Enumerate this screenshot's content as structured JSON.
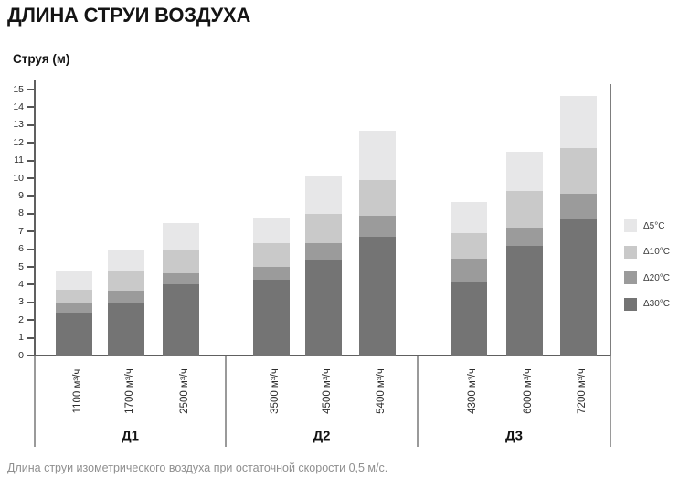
{
  "page": {
    "title": "ДЛИНА СТРУИ ВОЗДУХА",
    "y_axis_title": "Струя (м)",
    "caption": "Длина струи изометрического воздуха при остаточной скорости 0,5 м/с."
  },
  "chart_data": {
    "type": "bar",
    "stacked": true,
    "values_are": "cumulative jet length (m) reached for each ΔT; segments drawn as differences",
    "title": "ДЛИНА СТРУИ ВОЗДУХА",
    "ylabel": "Струя (м)",
    "xlabel": "",
    "ylim": [
      0,
      15
    ],
    "ytick_step": 1,
    "grid": false,
    "legend_position": "right",
    "series": [
      {
        "name": "Δ5°C",
        "color": "#e7e7e8"
      },
      {
        "name": "Δ10°C",
        "color": "#c9c9c9"
      },
      {
        "name": "Δ20°C",
        "color": "#9b9b9b"
      },
      {
        "name": "Δ30°C",
        "color": "#747474"
      }
    ],
    "groups": [
      {
        "label": "Д1",
        "bars": [
          {
            "category": "1100 м³/ч",
            "jet_length_m": {
              "Δ30°C": 2.4,
              "Δ20°C": 3.0,
              "Δ10°C": 3.7,
              "Δ5°C": 4.75
            }
          },
          {
            "category": "1700 м³/ч",
            "jet_length_m": {
              "Δ30°C": 3.0,
              "Δ20°C": 3.65,
              "Δ10°C": 4.75,
              "Δ5°C": 6.0
            }
          },
          {
            "category": "2500 м³/ч",
            "jet_length_m": {
              "Δ30°C": 4.0,
              "Δ20°C": 4.65,
              "Δ10°C": 6.0,
              "Δ5°C": 7.5
            }
          }
        ]
      },
      {
        "label": "Д2",
        "bars": [
          {
            "category": "3500 м³/ч",
            "jet_length_m": {
              "Δ30°C": 4.3,
              "Δ20°C": 5.0,
              "Δ10°C": 6.35,
              "Δ5°C": 7.75
            }
          },
          {
            "category": "4500 м³/ч",
            "jet_length_m": {
              "Δ30°C": 5.35,
              "Δ20°C": 6.35,
              "Δ10°C": 8.0,
              "Δ5°C": 10.1
            }
          },
          {
            "category": "5400 м³/ч",
            "jet_length_m": {
              "Δ30°C": 6.7,
              "Δ20°C": 7.9,
              "Δ10°C": 9.9,
              "Δ5°C": 12.7
            }
          }
        ]
      },
      {
        "label": "Д3",
        "bars": [
          {
            "category": "4300 м³/ч",
            "jet_length_m": {
              "Δ30°C": 4.1,
              "Δ20°C": 5.45,
              "Δ10°C": 6.9,
              "Δ5°C": 8.65
            }
          },
          {
            "category": "6000 м³/ч",
            "jet_length_m": {
              "Δ30°C": 6.2,
              "Δ20°C": 7.2,
              "Δ10°C": 9.3,
              "Δ5°C": 11.5
            }
          },
          {
            "category": "7200 м³/ч",
            "jet_length_m": {
              "Δ30°C": 7.7,
              "Δ20°C": 9.1,
              "Δ10°C": 11.7,
              "Δ5°C": 14.65
            }
          }
        ]
      }
    ]
  }
}
